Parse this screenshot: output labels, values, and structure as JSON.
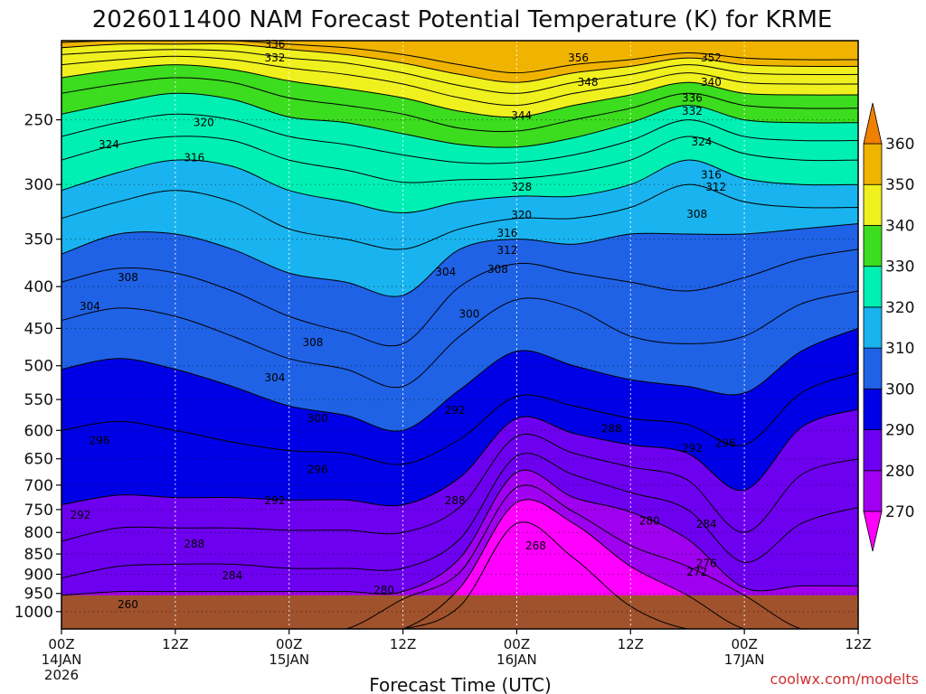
{
  "chart_data": {
    "type": "contour-time-height",
    "title": "2026011400 NAM Forecast Potential Temperature (K) for KRME",
    "xlabel": "Forecast Time (UTC)",
    "credit": "coolwx.com/modelts",
    "x_ticks": [
      {
        "hour": 0,
        "line1": "00Z",
        "line2": "14JAN",
        "line3": "2026"
      },
      {
        "hour": 12,
        "line1": "12Z",
        "line2": "",
        "line3": ""
      },
      {
        "hour": 24,
        "line1": "00Z",
        "line2": "15JAN",
        "line3": ""
      },
      {
        "hour": 36,
        "line1": "12Z",
        "line2": "",
        "line3": ""
      },
      {
        "hour": 48,
        "line1": "00Z",
        "line2": "16JAN",
        "line3": ""
      },
      {
        "hour": 60,
        "line1": "12Z",
        "line2": "",
        "line3": ""
      },
      {
        "hour": 72,
        "line1": "00Z",
        "line2": "17JAN",
        "line3": ""
      },
      {
        "hour": 84,
        "line1": "12Z",
        "line2": "",
        "line3": ""
      }
    ],
    "xlim_hours": [
      0,
      84
    ],
    "y_axis": {
      "units": "hPa",
      "scale": "log",
      "inverted": true,
      "range": [
        1050,
        200
      ],
      "ticks": [
        "250",
        "300",
        "350",
        "400",
        "450",
        "500",
        "550",
        "600",
        "650",
        "700",
        "750",
        "800",
        "850",
        "900",
        "950",
        "1000"
      ]
    },
    "surface_pressure_hPa": 955,
    "colorbar": {
      "ticks": [
        "270",
        "280",
        "290",
        "300",
        "310",
        "320",
        "330",
        "340",
        "350",
        "360"
      ],
      "colors": [
        "#ff00ff",
        "#a000f0",
        "#6e00f0",
        "#0000e6",
        "#1f62e6",
        "#19b4f0",
        "#00f0b4",
        "#3cdc1e",
        "#f0f01e",
        "#f0b400",
        "#f08000"
      ],
      "boundaries": [
        270,
        280,
        290,
        300,
        310,
        320,
        330,
        340,
        350,
        360
      ],
      "extend": "both"
    },
    "contour_interval_K": 4,
    "profile_columns_hours": [
      0,
      6,
      12,
      18,
      24,
      30,
      36,
      42,
      48,
      54,
      60,
      66,
      72,
      78,
      84
    ],
    "isentropes": [
      {
        "theta": 268,
        "p": [
          null,
          null,
          null,
          null,
          null,
          null,
          null,
          985,
          780,
          860,
          985,
          null,
          null,
          null,
          null
        ]
      },
      {
        "theta": 272,
        "p": [
          null,
          null,
          null,
          null,
          null,
          null,
          null,
          935,
          735,
          780,
          880,
          955,
          null,
          null,
          null
        ]
      },
      {
        "theta": 276,
        "p": [
          null,
          null,
          null,
          null,
          null,
          null,
          965,
          895,
          705,
          755,
          830,
          880,
          955,
          null,
          null
        ]
      },
      {
        "theta": 280,
        "p": [
          955,
          945,
          945,
          945,
          945,
          945,
          945,
          860,
          675,
          725,
          755,
          815,
          935,
          930,
          930
        ]
      },
      {
        "theta": 284,
        "p": [
          910,
          880,
          875,
          875,
          885,
          885,
          885,
          815,
          645,
          680,
          715,
          750,
          870,
          780,
          745
        ]
      },
      {
        "theta": 288,
        "p": [
          820,
          790,
          790,
          790,
          795,
          795,
          800,
          745,
          610,
          640,
          665,
          690,
          800,
          680,
          650
        ]
      },
      {
        "theta": 292,
        "p": [
          740,
          720,
          725,
          725,
          730,
          730,
          740,
          685,
          580,
          605,
          625,
          640,
          710,
          595,
          565
        ]
      },
      {
        "theta": 296,
        "p": [
          600,
          585,
          600,
          620,
          635,
          640,
          660,
          615,
          545,
          560,
          580,
          590,
          625,
          540,
          510
        ]
      },
      {
        "theta": 300,
        "p": [
          505,
          490,
          505,
          530,
          560,
          575,
          600,
          535,
          480,
          500,
          520,
          530,
          540,
          480,
          450
        ]
      },
      {
        "theta": 304,
        "p": [
          440,
          425,
          435,
          460,
          490,
          505,
          530,
          460,
          415,
          425,
          460,
          470,
          460,
          420,
          405
        ]
      },
      {
        "theta": 308,
        "p": [
          395,
          380,
          385,
          405,
          435,
          455,
          470,
          400,
          375,
          385,
          395,
          405,
          390,
          370,
          360
        ]
      },
      {
        "theta": 312,
        "p": [
          365,
          345,
          345,
          360,
          385,
          395,
          410,
          360,
          350,
          355,
          345,
          345,
          345,
          340,
          335
        ]
      },
      {
        "theta": 316,
        "p": [
          330,
          315,
          305,
          315,
          340,
          350,
          360,
          340,
          330,
          330,
          320,
          300,
          315,
          320,
          320
        ]
      },
      {
        "theta": 320,
        "p": [
          305,
          290,
          280,
          285,
          305,
          315,
          325,
          315,
          310,
          310,
          300,
          280,
          295,
          300,
          300
        ]
      },
      {
        "theta": 324,
        "p": [
          280,
          268,
          262,
          265,
          280,
          288,
          298,
          296,
          295,
          290,
          280,
          262,
          275,
          280,
          280
        ]
      },
      {
        "theta": 328,
        "p": [
          262,
          252,
          246,
          250,
          262,
          268,
          276,
          282,
          282,
          276,
          265,
          250,
          262,
          265,
          265
        ]
      },
      {
        "theta": 332,
        "p": [
          246,
          238,
          232,
          236,
          248,
          252,
          260,
          268,
          270,
          263,
          252,
          240,
          250,
          252,
          252
        ]
      },
      {
        "theta": 336,
        "p": [
          232,
          226,
          222,
          225,
          235,
          240,
          246,
          256,
          258,
          250,
          242,
          232,
          240,
          242,
          242
        ]
      },
      {
        "theta": 340,
        "p": [
          222,
          217,
          214,
          217,
          224,
          229,
          235,
          244,
          248,
          240,
          233,
          225,
          232,
          233,
          233
        ]
      },
      {
        "theta": 344,
        "p": [
          214,
          211,
          209,
          211,
          216,
          220,
          226,
          235,
          240,
          232,
          226,
          219,
          225,
          226,
          226
        ]
      },
      {
        "theta": 348,
        "p": [
          208,
          206,
          205,
          206,
          210,
          213,
          219,
          227,
          232,
          225,
          220,
          214,
          219,
          220,
          220
        ]
      },
      {
        "theta": 352,
        "p": [
          204,
          202,
          202,
          202,
          205,
          208,
          213,
          220,
          225,
          219,
          215,
          210,
          214,
          215,
          215
        ]
      },
      {
        "theta": 356,
        "p": [
          201,
          200,
          200,
          200,
          202,
          204,
          208,
          214,
          219,
          214,
          211,
          207,
          210,
          211,
          211
        ]
      }
    ],
    "contour_labels": [
      {
        "text": "336",
        "hour": 22.5,
        "p": 202
      },
      {
        "text": "332",
        "hour": 22.5,
        "p": 210
      },
      {
        "text": "356",
        "hour": 54.5,
        "p": 210
      },
      {
        "text": "352",
        "hour": 68.5,
        "p": 210
      },
      {
        "text": "348",
        "hour": 55.5,
        "p": 225
      },
      {
        "text": "340",
        "hour": 68.5,
        "p": 225
      },
      {
        "text": "336",
        "hour": 66.5,
        "p": 235
      },
      {
        "text": "332",
        "hour": 66.5,
        "p": 244
      },
      {
        "text": "344",
        "hour": 48.5,
        "p": 247
      },
      {
        "text": "320",
        "hour": 15.0,
        "p": 252
      },
      {
        "text": "324",
        "hour": 5.0,
        "p": 268
      },
      {
        "text": "316",
        "hour": 14.0,
        "p": 278
      },
      {
        "text": "324",
        "hour": 67.5,
        "p": 266
      },
      {
        "text": "316",
        "hour": 68.5,
        "p": 292
      },
      {
        "text": "312",
        "hour": 69.0,
        "p": 302
      },
      {
        "text": "328",
        "hour": 48.5,
        "p": 302
      },
      {
        "text": "320",
        "hour": 48.5,
        "p": 327
      },
      {
        "text": "308",
        "hour": 67.0,
        "p": 326
      },
      {
        "text": "316",
        "hour": 47.0,
        "p": 344
      },
      {
        "text": "312",
        "hour": 47.0,
        "p": 361
      },
      {
        "text": "308",
        "hour": 46.0,
        "p": 381
      },
      {
        "text": "304",
        "hour": 40.5,
        "p": 384
      },
      {
        "text": "308",
        "hour": 7.0,
        "p": 390
      },
      {
        "text": "304",
        "hour": 3.0,
        "p": 423
      },
      {
        "text": "300",
        "hour": 43.0,
        "p": 432
      },
      {
        "text": "308",
        "hour": 26.5,
        "p": 468
      },
      {
        "text": "304",
        "hour": 22.5,
        "p": 517
      },
      {
        "text": "300",
        "hour": 27.0,
        "p": 580
      },
      {
        "text": "292",
        "hour": 41.5,
        "p": 567
      },
      {
        "text": "288",
        "hour": 58.0,
        "p": 597
      },
      {
        "text": "296",
        "hour": 4.0,
        "p": 617
      },
      {
        "text": "292",
        "hour": 66.5,
        "p": 631
      },
      {
        "text": "296",
        "hour": 70.0,
        "p": 622
      },
      {
        "text": "296",
        "hour": 27.0,
        "p": 670
      },
      {
        "text": "292",
        "hour": 22.5,
        "p": 731
      },
      {
        "text": "288",
        "hour": 41.5,
        "p": 731
      },
      {
        "text": "292",
        "hour": 2.0,
        "p": 762
      },
      {
        "text": "280",
        "hour": 62.0,
        "p": 774
      },
      {
        "text": "284",
        "hour": 68.0,
        "p": 781
      },
      {
        "text": "288",
        "hour": 14.0,
        "p": 826
      },
      {
        "text": "268",
        "hour": 50.0,
        "p": 831
      },
      {
        "text": "276",
        "hour": 68.0,
        "p": 873
      },
      {
        "text": "272",
        "hour": 67.0,
        "p": 894
      },
      {
        "text": "284",
        "hour": 18.0,
        "p": 904
      },
      {
        "text": "280",
        "hour": 34.0,
        "p": 941
      },
      {
        "text": "260",
        "hour": 7.0,
        "p": 980
      }
    ]
  }
}
